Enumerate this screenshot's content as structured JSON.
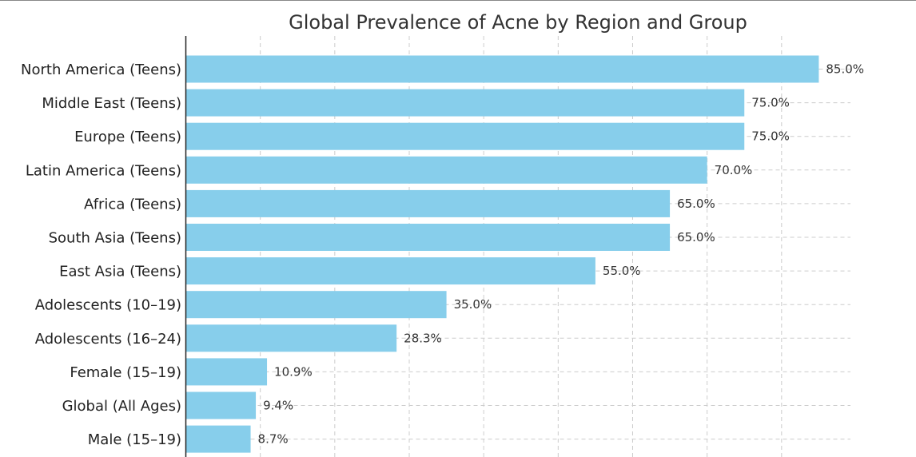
{
  "chart_data": {
    "type": "bar",
    "orientation": "horizontal",
    "title": "Global Prevalence of Acne by Region and Group",
    "xlabel": "",
    "ylabel": "",
    "categories": [
      "North America (Teens)",
      "Middle East (Teens)",
      "Europe (Teens)",
      "Latin America (Teens)",
      "Africa (Teens)",
      "South Asia (Teens)",
      "East Asia (Teens)",
      "Adolescents (10–19)",
      "Adolescents (16–24)",
      "Female (15–19)",
      "Global (All Ages)",
      "Male (15–19)"
    ],
    "values": [
      85.0,
      75.0,
      75.0,
      70.0,
      65.0,
      65.0,
      55.0,
      35.0,
      28.3,
      10.9,
      9.4,
      8.7
    ],
    "value_labels": [
      "85.0%",
      "75.0%",
      "75.0%",
      "70.0%",
      "65.0%",
      "65.0%",
      "55.0%",
      "35.0%",
      "28.3%",
      "10.9%",
      "9.4%",
      "8.7%"
    ],
    "xlim": [
      0,
      89.25
    ],
    "grid": true,
    "bar_color": "#87CEEB"
  }
}
